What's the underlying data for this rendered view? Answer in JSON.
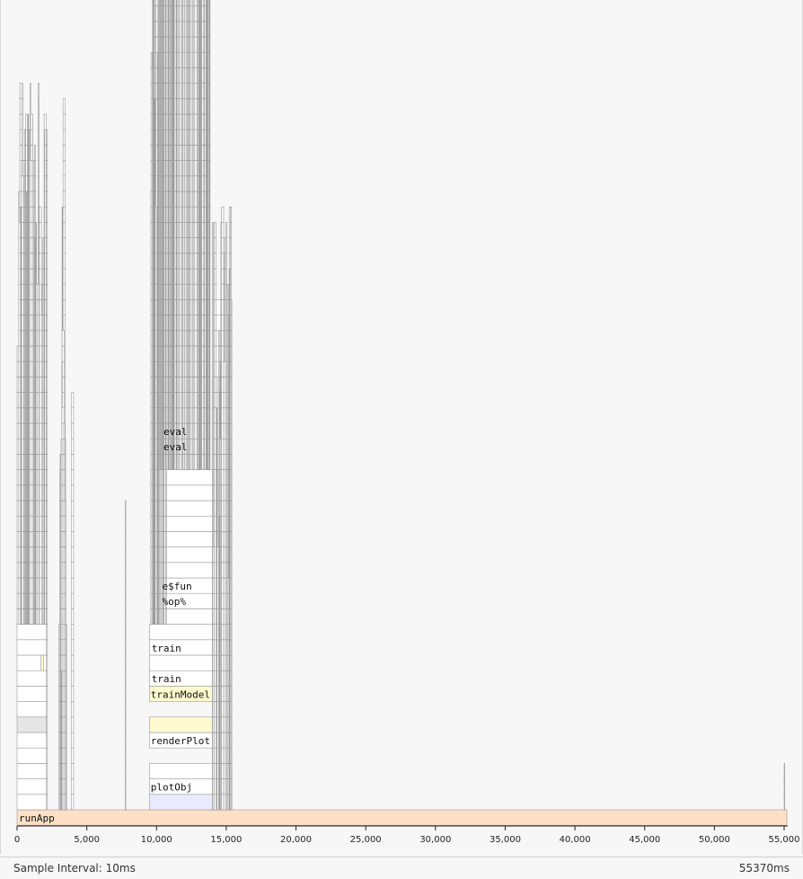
{
  "profile": {
    "root_function": "runApp",
    "total_ms": 55370,
    "sample_interval_ms": 10,
    "visible_labels": [
      "runApp",
      "plotObj",
      "renderPlot",
      "trainModel",
      "train",
      "train",
      "%op%",
      "e$fun",
      "eval",
      "eval"
    ],
    "colors": {
      "root": "#fde0c5",
      "highlight": "#fdfacf",
      "blue": "#e9eafd",
      "frame": "#ffffff",
      "grey": "#e6e6e6",
      "border": "#9a9a9a"
    }
  },
  "axis": {
    "ticks": [
      "0",
      "5,000",
      "10,000",
      "15,000",
      "20,000",
      "25,000",
      "30,000",
      "35,000",
      "40,000",
      "45,000",
      "50,000",
      "55,000"
    ]
  },
  "footer": {
    "sample_interval": "Sample Interval: 10ms",
    "total": "55370ms"
  }
}
